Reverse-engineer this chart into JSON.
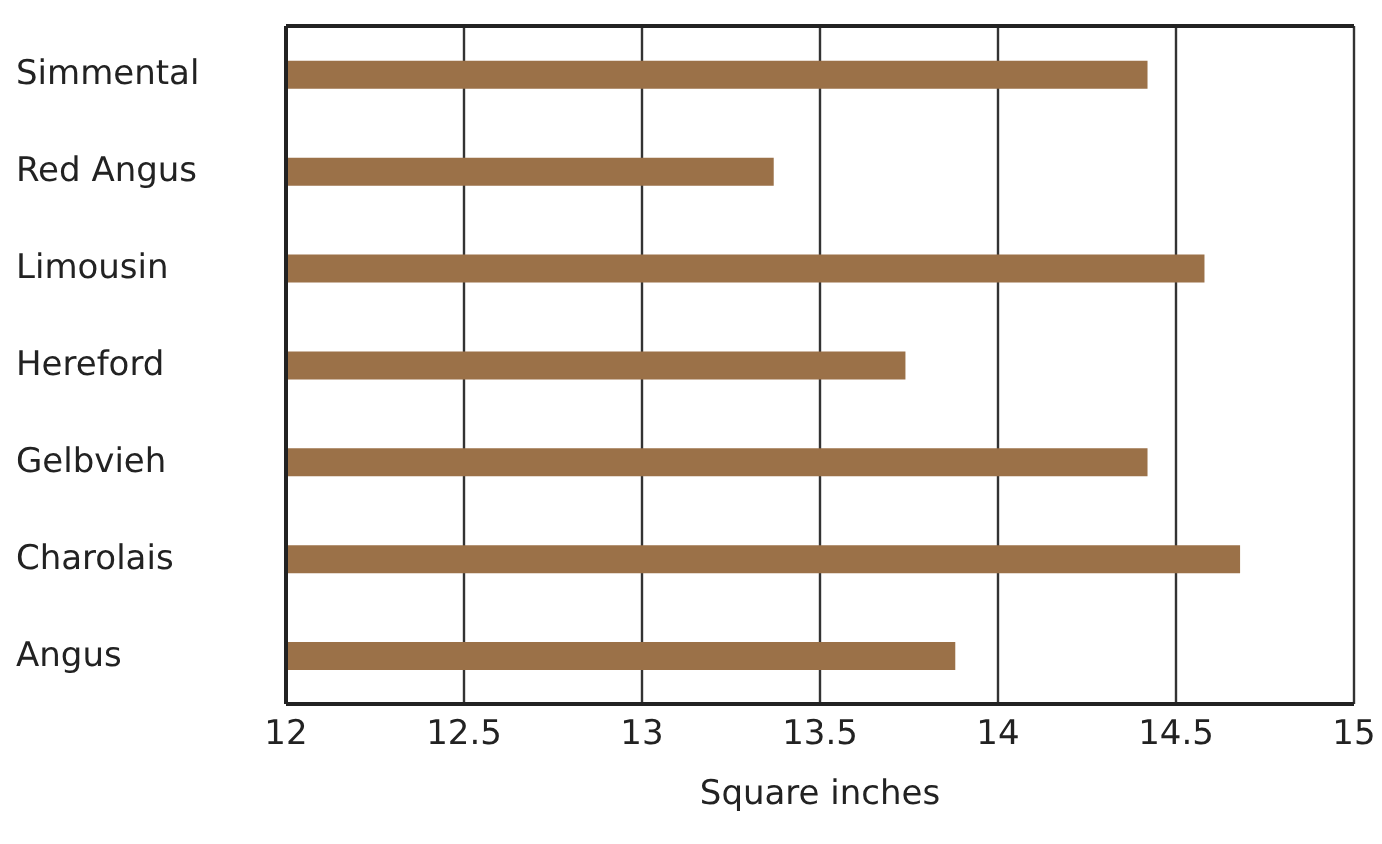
{
  "chart_data": {
    "type": "bar",
    "orientation": "horizontal",
    "xlabel": "Square inches",
    "categories": [
      "Simmental",
      "Red Angus",
      "Limousin",
      "Hereford",
      "Gelbvieh",
      "Charolais",
      "Angus"
    ],
    "values": [
      14.42,
      13.37,
      14.58,
      13.74,
      14.42,
      14.68,
      13.88
    ],
    "color": "#9b7148",
    "xlim": [
      12,
      15
    ],
    "xticks": [
      12,
      12.5,
      13,
      13.5,
      14,
      14.5,
      15
    ],
    "grid": "x"
  }
}
